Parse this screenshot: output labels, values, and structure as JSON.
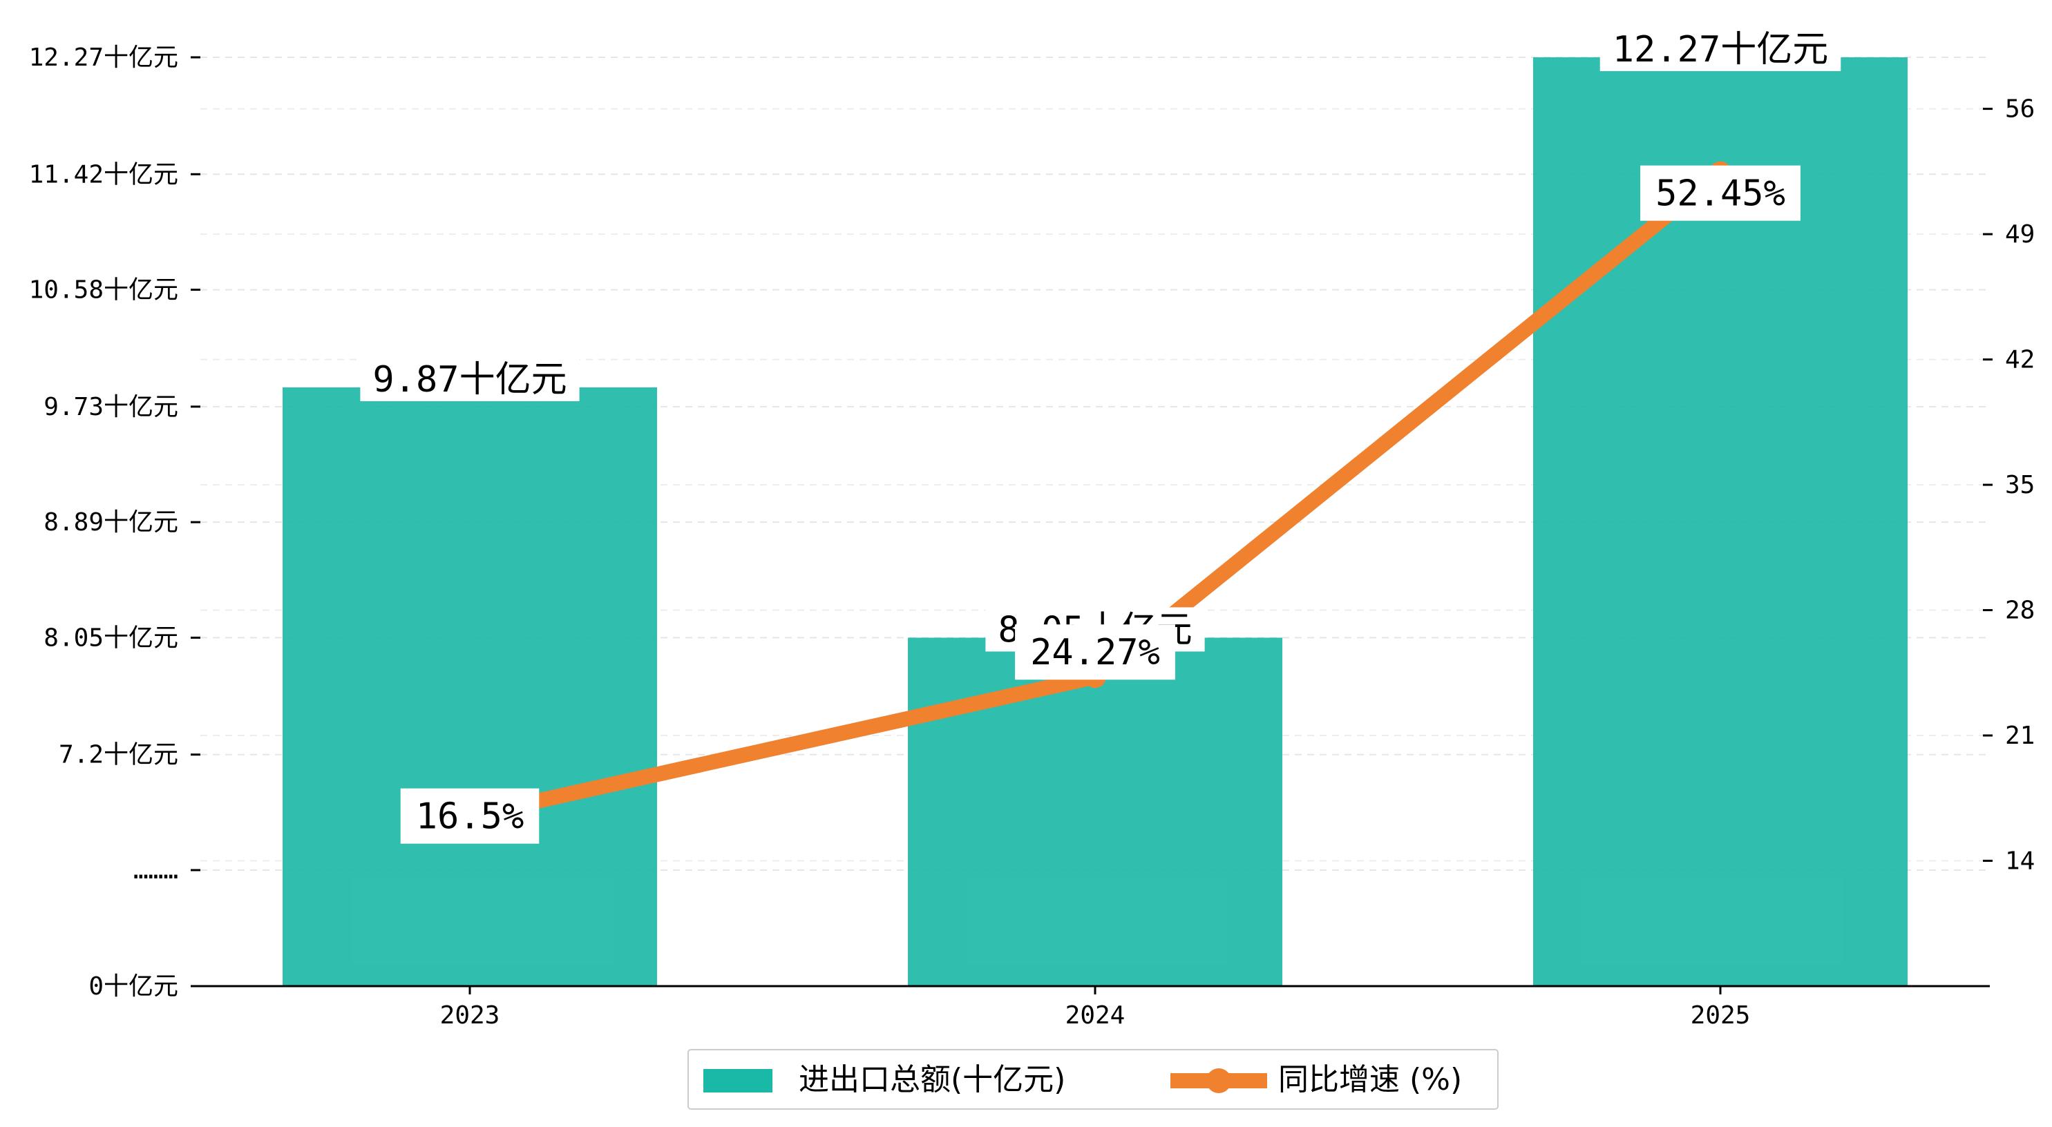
{
  "chart_data": {
    "type": "bar",
    "categories": [
      "2023",
      "2024",
      "2025"
    ],
    "series": [
      {
        "name": "进出口总额(十亿元)",
        "type": "bar",
        "values": [
          9.87,
          8.05,
          12.27
        ],
        "value_labels": [
          "9.87十亿元",
          "8.05十亿元",
          "12.27十亿元"
        ],
        "color": "#1ab8a6"
      },
      {
        "name": "同比增速 (%)",
        "type": "line",
        "values": [
          16.5,
          24.27,
          52.45
        ],
        "value_labels": [
          "16.5%",
          "24.27%",
          "52.45%"
        ],
        "color": "#f0812e"
      }
    ],
    "y_left": {
      "ticks": [
        {
          "value": 0,
          "label": "0十亿元"
        },
        {
          "value": 6.36,
          "label": "………"
        },
        {
          "value": 7.2,
          "label": "7.2十亿元"
        },
        {
          "value": 8.05,
          "label": "8.05十亿元"
        },
        {
          "value": 8.89,
          "label": "8.89十亿元"
        },
        {
          "value": 9.73,
          "label": "9.73十亿元"
        },
        {
          "value": 10.58,
          "label": "10.58十亿元"
        },
        {
          "value": 11.42,
          "label": "11.42十亿元"
        },
        {
          "value": 12.27,
          "label": "12.27十亿元"
        }
      ],
      "broken_axis": true
    },
    "y_right": {
      "ticks": [
        14,
        21,
        28,
        35,
        42,
        49,
        56
      ],
      "ylim": [
        7,
        61.5
      ]
    },
    "grid": true,
    "legend_position": "bottom-center"
  }
}
